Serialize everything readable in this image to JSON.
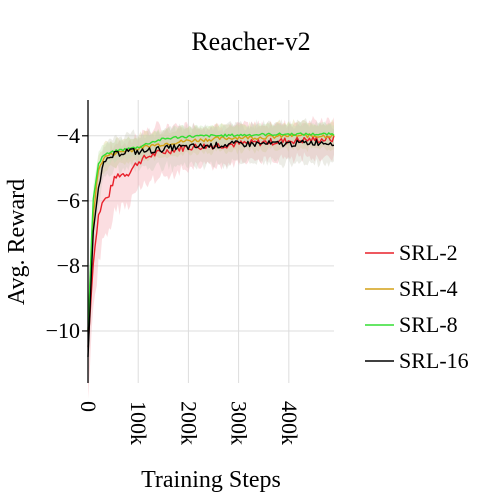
{
  "chart_data": {
    "type": "line",
    "title": "Reacher-v2",
    "xlabel": "Training Steps",
    "ylabel": "Avg. Reward",
    "xlim": [
      0,
      490000
    ],
    "ylim": [
      -11.6,
      -2.9
    ],
    "x_ticks": [
      0,
      100000,
      200000,
      300000,
      400000
    ],
    "x_tick_labels": [
      "0",
      "100k",
      "200k",
      "300k",
      "400k"
    ],
    "y_ticks": [
      -10,
      -8,
      -6,
      -4
    ],
    "y_tick_labels": [
      "−10",
      "−8",
      "−6",
      "−4"
    ],
    "grid": true,
    "legend_position": "right",
    "series": [
      {
        "name": "SRL-2",
        "color": "#e8202a",
        "band_color": "#f4a0a8",
        "x": [
          0,
          10000,
          20000,
          30000,
          40000,
          50000,
          60000,
          80000,
          100000,
          125000,
          150000,
          175000,
          200000,
          250000,
          300000,
          350000,
          400000,
          450000,
          490000
        ],
        "y": [
          -10.5,
          -8.0,
          -6.5,
          -6.0,
          -5.9,
          -5.4,
          -5.2,
          -5.15,
          -4.8,
          -4.6,
          -4.5,
          -4.4,
          -4.35,
          -4.3,
          -4.25,
          -4.2,
          -4.15,
          -4.12,
          -4.1
        ],
        "band": [
          1.6,
          1.5,
          1.4,
          1.3,
          1.2,
          1.1,
          1.0,
          0.9,
          0.85,
          0.8,
          0.75,
          0.7,
          0.65,
          0.6,
          0.55,
          0.55,
          0.55,
          0.55,
          0.55
        ]
      },
      {
        "name": "SRL-4",
        "color": "#d4a017",
        "band_color": "#d9cf8a",
        "x": [
          0,
          10000,
          20000,
          30000,
          40000,
          50000,
          60000,
          80000,
          100000,
          125000,
          150000,
          175000,
          200000,
          250000,
          300000,
          350000,
          400000,
          450000,
          490000
        ],
        "y": [
          -10.0,
          -6.5,
          -5.1,
          -4.7,
          -4.6,
          -4.55,
          -4.5,
          -4.45,
          -4.4,
          -4.3,
          -4.25,
          -4.2,
          -4.15,
          -4.1,
          -4.05,
          -4.05,
          -4.0,
          -4.0,
          -4.0
        ],
        "band": [
          0.6,
          0.5,
          0.45,
          0.4,
          0.4,
          0.4,
          0.4,
          0.4,
          0.4,
          0.4,
          0.4,
          0.4,
          0.4,
          0.4,
          0.4,
          0.4,
          0.4,
          0.4,
          0.4
        ]
      },
      {
        "name": "SRL-8",
        "color": "#33dd33",
        "band_color": "#bfe6b0",
        "x": [
          0,
          10000,
          20000,
          30000,
          40000,
          50000,
          60000,
          80000,
          100000,
          125000,
          150000,
          175000,
          200000,
          250000,
          300000,
          350000,
          400000,
          450000,
          490000
        ],
        "y": [
          -10.0,
          -6.0,
          -4.9,
          -4.6,
          -4.55,
          -4.5,
          -4.45,
          -4.4,
          -4.35,
          -4.2,
          -4.1,
          -4.05,
          -4.02,
          -4.0,
          -3.98,
          -3.96,
          -3.95,
          -3.95,
          -3.95
        ],
        "band": [
          0.5,
          0.4,
          0.35,
          0.3,
          0.3,
          0.3,
          0.3,
          0.3,
          0.3,
          0.3,
          0.3,
          0.3,
          0.3,
          0.3,
          0.3,
          0.3,
          0.3,
          0.3,
          0.3
        ]
      },
      {
        "name": "SRL-16",
        "color": "#000000",
        "band_color": "#c8c8b8",
        "x": [
          0,
          10000,
          20000,
          30000,
          40000,
          50000,
          60000,
          80000,
          100000,
          125000,
          150000,
          175000,
          200000,
          250000,
          300000,
          350000,
          400000,
          450000,
          490000
        ],
        "y": [
          -10.8,
          -7.0,
          -5.6,
          -4.9,
          -4.75,
          -4.6,
          -4.55,
          -4.45,
          -4.5,
          -4.45,
          -4.4,
          -4.35,
          -4.35,
          -4.3,
          -4.25,
          -4.25,
          -4.25,
          -4.2,
          -4.2
        ],
        "band": [
          0.8,
          0.7,
          0.6,
          0.55,
          0.5,
          0.5,
          0.5,
          0.5,
          0.5,
          0.55,
          0.55,
          0.6,
          0.6,
          0.6,
          0.6,
          0.6,
          0.6,
          0.6,
          0.6
        ]
      }
    ]
  }
}
